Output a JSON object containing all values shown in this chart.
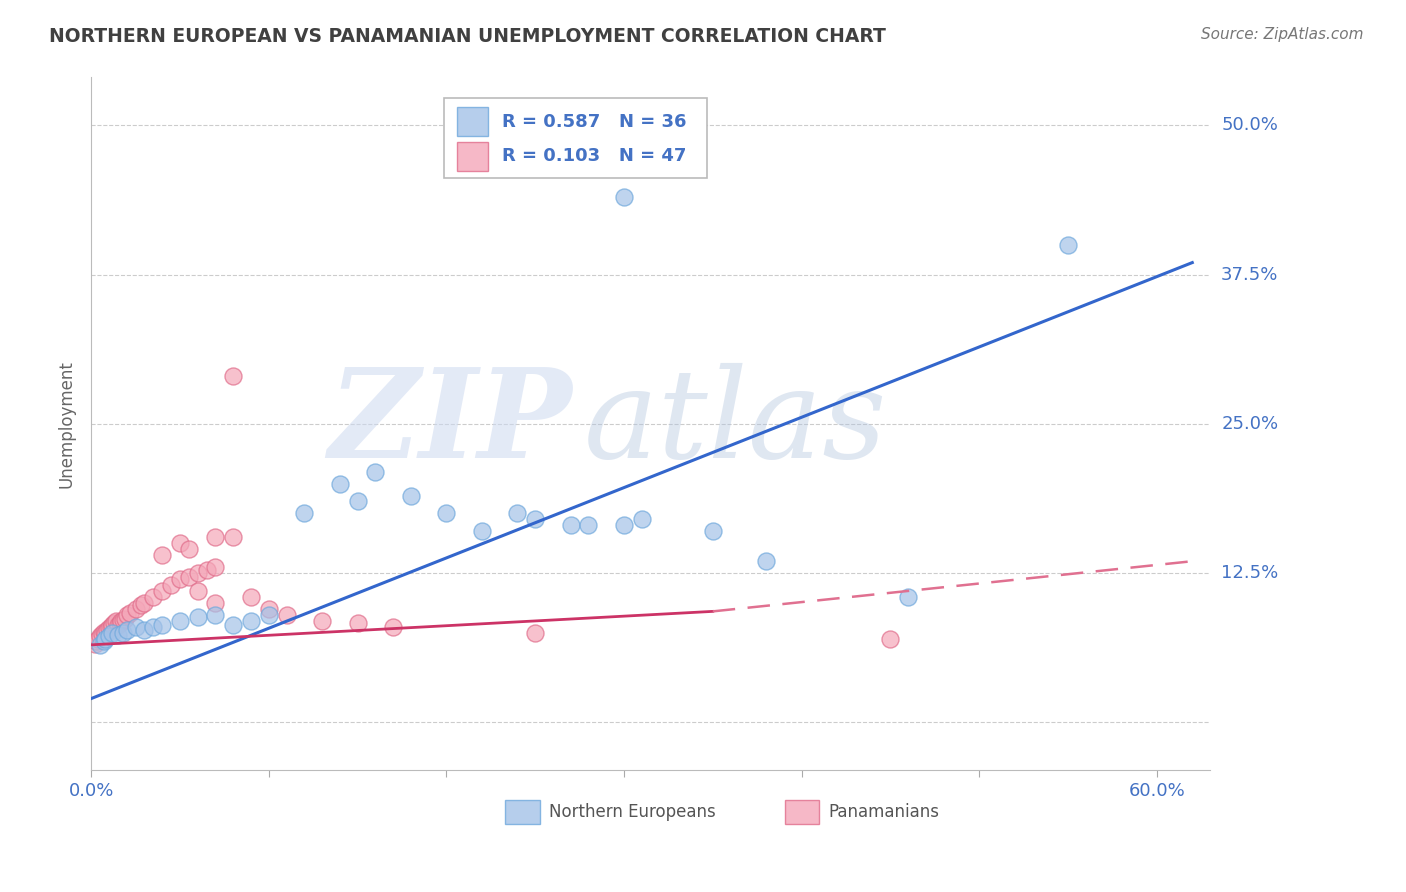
{
  "title": "NORTHERN EUROPEAN VS PANAMANIAN UNEMPLOYMENT CORRELATION CHART",
  "source": "Source: ZipAtlas.com",
  "ylabel": "Unemployment",
  "xlim": [
    0.0,
    0.63
  ],
  "ylim": [
    -0.04,
    0.54
  ],
  "blue_R": 0.587,
  "blue_N": 36,
  "pink_R": 0.103,
  "pink_N": 47,
  "blue_color": "#a4c2e8",
  "pink_color": "#f4a7b9",
  "blue_edge_color": "#6fa8dc",
  "pink_edge_color": "#e06c8a",
  "blue_line_color": "#3366cc",
  "pink_line_solid_color": "#cc3366",
  "pink_line_dash_color": "#e07090",
  "bg_color": "#ffffff",
  "grid_color": "#cccccc",
  "axis_label_color": "#4472c4",
  "title_color": "#404040",
  "watermark_zip": "ZIP",
  "watermark_atlas": "atlas",
  "blue_scatter": [
    [
      0.005,
      0.065
    ],
    [
      0.007,
      0.068
    ],
    [
      0.008,
      0.07
    ],
    [
      0.01,
      0.072
    ],
    [
      0.012,
      0.075
    ],
    [
      0.015,
      0.073
    ],
    [
      0.018,
      0.075
    ],
    [
      0.02,
      0.077
    ],
    [
      0.025,
      0.08
    ],
    [
      0.03,
      0.077
    ],
    [
      0.035,
      0.08
    ],
    [
      0.04,
      0.082
    ],
    [
      0.05,
      0.085
    ],
    [
      0.06,
      0.088
    ],
    [
      0.07,
      0.09
    ],
    [
      0.08,
      0.082
    ],
    [
      0.09,
      0.085
    ],
    [
      0.1,
      0.09
    ],
    [
      0.12,
      0.175
    ],
    [
      0.14,
      0.2
    ],
    [
      0.15,
      0.185
    ],
    [
      0.16,
      0.21
    ],
    [
      0.18,
      0.19
    ],
    [
      0.2,
      0.175
    ],
    [
      0.22,
      0.16
    ],
    [
      0.24,
      0.175
    ],
    [
      0.25,
      0.17
    ],
    [
      0.27,
      0.165
    ],
    [
      0.28,
      0.165
    ],
    [
      0.3,
      0.165
    ],
    [
      0.31,
      0.17
    ],
    [
      0.35,
      0.16
    ],
    [
      0.38,
      0.135
    ],
    [
      0.46,
      0.105
    ],
    [
      0.3,
      0.44
    ],
    [
      0.55,
      0.4
    ]
  ],
  "pink_scatter": [
    [
      0.002,
      0.066
    ],
    [
      0.003,
      0.068
    ],
    [
      0.004,
      0.07
    ],
    [
      0.005,
      0.072
    ],
    [
      0.006,
      0.074
    ],
    [
      0.007,
      0.076
    ],
    [
      0.008,
      0.075
    ],
    [
      0.009,
      0.077
    ],
    [
      0.01,
      0.079
    ],
    [
      0.011,
      0.08
    ],
    [
      0.012,
      0.082
    ],
    [
      0.013,
      0.083
    ],
    [
      0.014,
      0.085
    ],
    [
      0.015,
      0.082
    ],
    [
      0.016,
      0.083
    ],
    [
      0.017,
      0.085
    ],
    [
      0.018,
      0.086
    ],
    [
      0.019,
      0.087
    ],
    [
      0.02,
      0.09
    ],
    [
      0.022,
      0.092
    ],
    [
      0.025,
      0.095
    ],
    [
      0.028,
      0.098
    ],
    [
      0.03,
      0.1
    ],
    [
      0.035,
      0.105
    ],
    [
      0.04,
      0.11
    ],
    [
      0.045,
      0.115
    ],
    [
      0.05,
      0.12
    ],
    [
      0.055,
      0.122
    ],
    [
      0.06,
      0.125
    ],
    [
      0.065,
      0.128
    ],
    [
      0.07,
      0.13
    ],
    [
      0.04,
      0.14
    ],
    [
      0.05,
      0.15
    ],
    [
      0.055,
      0.145
    ],
    [
      0.07,
      0.155
    ],
    [
      0.08,
      0.155
    ],
    [
      0.08,
      0.29
    ],
    [
      0.06,
      0.11
    ],
    [
      0.07,
      0.1
    ],
    [
      0.09,
      0.105
    ],
    [
      0.1,
      0.095
    ],
    [
      0.11,
      0.09
    ],
    [
      0.13,
      0.085
    ],
    [
      0.15,
      0.083
    ],
    [
      0.17,
      0.08
    ],
    [
      0.25,
      0.075
    ],
    [
      0.45,
      0.07
    ]
  ],
  "blue_line": {
    "x0": 0.0,
    "y0": 0.02,
    "x1": 0.62,
    "y1": 0.385
  },
  "pink_line_solid": {
    "x0": 0.0,
    "y0": 0.065,
    "x1": 0.35,
    "y1": 0.093
  },
  "pink_line_dash": {
    "x0": 0.35,
    "y0": 0.093,
    "x1": 0.62,
    "y1": 0.135
  }
}
